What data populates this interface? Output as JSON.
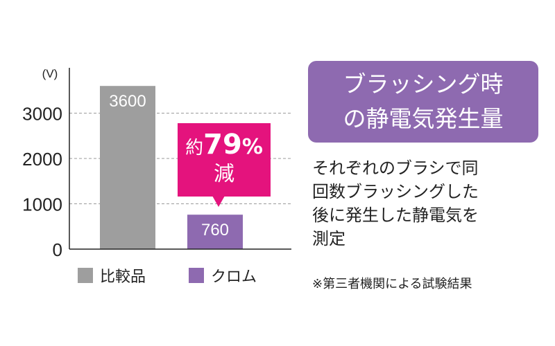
{
  "chart_data": {
    "type": "bar",
    "categories": [
      "比較品",
      "クロム"
    ],
    "values": [
      3600,
      760
    ],
    "data_labels": [
      "3600",
      "760"
    ],
    "colors": [
      "#9e9e9e",
      "#8e6ab0"
    ],
    "unit": "(V)",
    "ylim": [
      0,
      4000
    ],
    "yticks": [
      0,
      1000,
      2000,
      3000
    ],
    "ytick_labels": [
      "0",
      "1000",
      "2000",
      "3000"
    ],
    "grid": true,
    "legend": [
      {
        "label": "比較品",
        "color": "#9e9e9e"
      },
      {
        "label": "クロム",
        "color": "#8e6ab0"
      }
    ]
  },
  "callout": {
    "prefix": "約",
    "number": "79",
    "percent": "%",
    "suffix": "減",
    "color": "#e4137d"
  },
  "title_lines": [
    "ブラッシング時",
    "の静電気発生量"
  ],
  "description_lines": [
    "それぞれのブラシで同",
    "回数ブラッシングした",
    "後に発生した静電気を",
    "測定"
  ],
  "note": "※第三者機関による試験結果",
  "colors": {
    "accent": "#8e6ab0",
    "highlight": "#e4137d"
  }
}
